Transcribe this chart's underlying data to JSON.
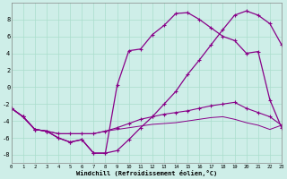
{
  "background_color": "#ceeee8",
  "grid_color": "#aaddcc",
  "line_color": "#880088",
  "xlim": [
    0,
    23
  ],
  "ylim": [
    -9,
    10
  ],
  "xticks": [
    0,
    1,
    2,
    3,
    4,
    5,
    6,
    7,
    8,
    9,
    10,
    11,
    12,
    13,
    14,
    15,
    16,
    17,
    18,
    19,
    20,
    21,
    22,
    23
  ],
  "yticks": [
    -8,
    -6,
    -4,
    -2,
    0,
    2,
    4,
    6,
    8
  ],
  "xlabel": "Windchill (Refroidissement éolien,°C)",
  "s1_x": [
    0,
    1,
    2,
    3,
    4,
    5,
    6,
    7,
    8,
    9,
    10,
    11,
    12,
    13,
    14,
    15,
    16,
    17,
    18,
    19,
    20,
    21,
    22,
    23
  ],
  "s1_y": [
    -2.5,
    -3.5,
    -5.0,
    -5.2,
    -6.0,
    -6.5,
    -6.2,
    -7.8,
    -7.8,
    0.2,
    4.3,
    4.5,
    6.2,
    7.3,
    8.7,
    8.8,
    8.0,
    7.0,
    6.0,
    5.5,
    4.0,
    4.2,
    -1.5,
    -4.8
  ],
  "s2_x": [
    0,
    1,
    2,
    3,
    4,
    5,
    6,
    7,
    8,
    9,
    10,
    11,
    12,
    13,
    14,
    15,
    16,
    17,
    18,
    19,
    20,
    21,
    22,
    23
  ],
  "s2_y": [
    -2.5,
    -3.5,
    -5.0,
    -5.2,
    -6.0,
    -6.5,
    -6.2,
    -7.8,
    -7.8,
    -7.5,
    -6.2,
    -4.8,
    -3.5,
    -2.0,
    -0.5,
    1.5,
    3.2,
    5.0,
    6.8,
    8.5,
    9.0,
    8.5,
    7.5,
    5.0
  ],
  "s3_x": [
    0,
    1,
    2,
    3,
    4,
    5,
    6,
    7,
    8,
    9,
    10,
    11,
    12,
    13,
    14,
    15,
    16,
    17,
    18,
    19,
    20,
    21,
    22,
    23
  ],
  "s3_y": [
    -2.5,
    -3.5,
    -5.0,
    -5.2,
    -5.5,
    -5.5,
    -5.5,
    -5.5,
    -5.2,
    -4.8,
    -4.3,
    -3.8,
    -3.5,
    -3.2,
    -3.0,
    -2.8,
    -2.5,
    -2.2,
    -2.0,
    -1.8,
    -2.5,
    -3.0,
    -3.5,
    -4.5
  ],
  "s4_x": [
    0,
    1,
    2,
    3,
    4,
    5,
    6,
    7,
    8,
    9,
    10,
    11,
    12,
    13,
    14,
    15,
    16,
    17,
    18,
    19,
    20,
    21,
    22,
    23
  ],
  "s4_y": [
    -2.5,
    -3.5,
    -5.0,
    -5.2,
    -5.5,
    -5.5,
    -5.5,
    -5.5,
    -5.2,
    -5.0,
    -4.8,
    -4.6,
    -4.4,
    -4.3,
    -4.2,
    -4.0,
    -3.8,
    -3.6,
    -3.5,
    -3.8,
    -4.2,
    -4.5,
    -5.0,
    -4.5
  ],
  "marker_series": [
    1,
    1,
    1,
    0
  ]
}
